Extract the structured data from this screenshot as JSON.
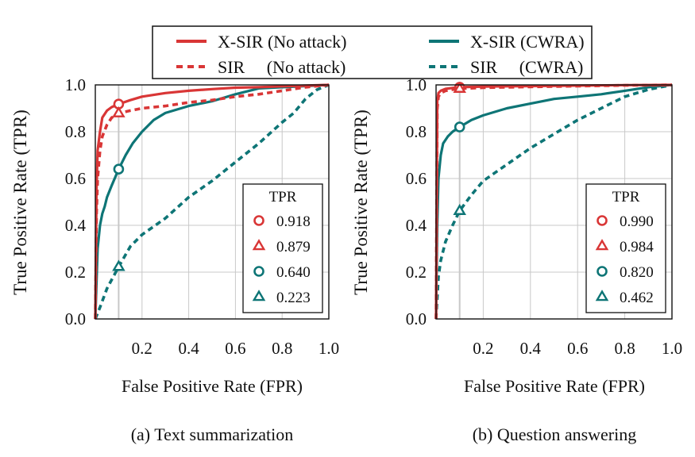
{
  "colors": {
    "red": "#d93636",
    "teal": "#0e7576",
    "grid": "#c8c8c8",
    "axis": "#111111",
    "vline": "#c8c8c8"
  },
  "legend": {
    "entries": [
      {
        "label": "X-SIR (No attack)",
        "color": "red",
        "dash": "solid"
      },
      {
        "label": "X-SIR (CWRA)",
        "color": "teal",
        "dash": "solid"
      },
      {
        "label": "SIR     (No attack)",
        "color": "red",
        "dash": "dashed"
      },
      {
        "label": "SIR     (CWRA)",
        "color": "teal",
        "dash": "dashed"
      }
    ]
  },
  "chart_data": [
    {
      "type": "line",
      "title": "(a) Text summarization",
      "xlabel": "False Positive Rate (FPR)",
      "ylabel": "True Positive Rate (TPR)",
      "xlim": [
        0,
        1
      ],
      "ylim": [
        0,
        1
      ],
      "xticks": [
        "0.2",
        "0.4",
        "0.6",
        "0.8",
        "1.0"
      ],
      "yticks": [
        "0.0",
        "0.2",
        "0.4",
        "0.6",
        "0.8",
        "1.0"
      ],
      "grid": true,
      "reference_fpr": 0.1,
      "marker_box_title": "TPR",
      "series": [
        {
          "name": "X-SIR (No attack)",
          "color": "red",
          "dash": "solid",
          "marker": "circle",
          "tpr_at_ref": "0.918",
          "x": [
            0,
            0.005,
            0.01,
            0.02,
            0.03,
            0.05,
            0.07,
            0.1,
            0.15,
            0.2,
            0.3,
            0.4,
            0.5,
            0.6,
            0.7,
            0.8,
            0.9,
            1.0
          ],
          "y": [
            0,
            0.55,
            0.72,
            0.8,
            0.86,
            0.89,
            0.905,
            0.918,
            0.935,
            0.95,
            0.965,
            0.975,
            0.982,
            0.988,
            0.99,
            0.994,
            0.997,
            1.0
          ]
        },
        {
          "name": "SIR (No attack)",
          "color": "red",
          "dash": "dashed",
          "marker": "triangle",
          "tpr_at_ref": "0.879",
          "x": [
            0,
            0.005,
            0.01,
            0.02,
            0.03,
            0.05,
            0.07,
            0.1,
            0.15,
            0.2,
            0.3,
            0.4,
            0.5,
            0.6,
            0.7,
            0.8,
            0.9,
            1.0
          ],
          "y": [
            0,
            0.45,
            0.6,
            0.72,
            0.78,
            0.83,
            0.86,
            0.879,
            0.89,
            0.9,
            0.91,
            0.925,
            0.935,
            0.95,
            0.96,
            0.975,
            0.99,
            1.0
          ]
        },
        {
          "name": "X-SIR (CWRA)",
          "color": "teal",
          "dash": "solid",
          "marker": "circle",
          "tpr_at_ref": "0.640",
          "x": [
            0,
            0.01,
            0.02,
            0.03,
            0.04,
            0.05,
            0.07,
            0.1,
            0.13,
            0.16,
            0.2,
            0.25,
            0.3,
            0.4,
            0.5,
            0.6,
            0.7,
            0.8,
            0.9,
            1.0
          ],
          "y": [
            0,
            0.3,
            0.4,
            0.45,
            0.48,
            0.52,
            0.57,
            0.64,
            0.7,
            0.75,
            0.8,
            0.85,
            0.88,
            0.91,
            0.93,
            0.96,
            0.985,
            0.99,
            0.995,
            1.0
          ]
        },
        {
          "name": "SIR (CWRA)",
          "color": "teal",
          "dash": "dashed",
          "marker": "triangle",
          "tpr_at_ref": "0.223",
          "x": [
            0,
            0.02,
            0.05,
            0.1,
            0.15,
            0.2,
            0.3,
            0.4,
            0.5,
            0.6,
            0.7,
            0.8,
            0.85,
            0.9,
            0.95,
            1.0
          ],
          "y": [
            0,
            0.05,
            0.13,
            0.223,
            0.31,
            0.36,
            0.43,
            0.52,
            0.59,
            0.67,
            0.75,
            0.84,
            0.88,
            0.94,
            0.98,
            1.0
          ]
        }
      ]
    },
    {
      "type": "line",
      "title": "(b) Question answering",
      "xlabel": "False Positive Rate (FPR)",
      "ylabel": "True Positive Rate (TPR)",
      "xlim": [
        0,
        1
      ],
      "ylim": [
        0,
        1
      ],
      "xticks": [
        "0.2",
        "0.4",
        "0.6",
        "0.8",
        "1.0"
      ],
      "yticks": [
        "0.0",
        "0.2",
        "0.4",
        "0.6",
        "0.8",
        "1.0"
      ],
      "grid": true,
      "reference_fpr": 0.1,
      "marker_box_title": "TPR",
      "series": [
        {
          "name": "X-SIR (No attack)",
          "color": "red",
          "dash": "solid",
          "marker": "circle",
          "tpr_at_ref": "0.990",
          "x": [
            0,
            0.005,
            0.01,
            0.02,
            0.04,
            0.07,
            0.1,
            0.2,
            0.4,
            0.6,
            0.8,
            1.0
          ],
          "y": [
            0,
            0.93,
            0.965,
            0.975,
            0.983,
            0.987,
            0.99,
            0.993,
            0.995,
            0.997,
            0.999,
            1.0
          ]
        },
        {
          "name": "SIR (No attack)",
          "color": "red",
          "dash": "dashed",
          "marker": "triangle",
          "tpr_at_ref": "0.984",
          "x": [
            0,
            0.005,
            0.01,
            0.02,
            0.04,
            0.07,
            0.1,
            0.2,
            0.4,
            0.6,
            0.8,
            1.0
          ],
          "y": [
            0,
            0.9,
            0.95,
            0.965,
            0.975,
            0.98,
            0.984,
            0.988,
            0.992,
            0.995,
            0.998,
            1.0
          ]
        },
        {
          "name": "X-SIR (CWRA)",
          "color": "teal",
          "dash": "solid",
          "marker": "circle",
          "tpr_at_ref": "0.820",
          "x": [
            0,
            0.005,
            0.01,
            0.02,
            0.03,
            0.05,
            0.07,
            0.1,
            0.15,
            0.2,
            0.3,
            0.4,
            0.5,
            0.6,
            0.7,
            0.8,
            0.9,
            1.0
          ],
          "y": [
            0,
            0.4,
            0.6,
            0.7,
            0.75,
            0.78,
            0.8,
            0.82,
            0.85,
            0.87,
            0.9,
            0.92,
            0.94,
            0.95,
            0.96,
            0.975,
            0.99,
            1.0
          ]
        },
        {
          "name": "SIR (CWRA)",
          "color": "teal",
          "dash": "dashed",
          "marker": "triangle",
          "tpr_at_ref": "0.462",
          "x": [
            0,
            0.01,
            0.02,
            0.04,
            0.07,
            0.1,
            0.15,
            0.2,
            0.3,
            0.4,
            0.5,
            0.6,
            0.7,
            0.8,
            0.9,
            1.0
          ],
          "y": [
            0,
            0.18,
            0.25,
            0.33,
            0.4,
            0.462,
            0.53,
            0.59,
            0.66,
            0.73,
            0.79,
            0.85,
            0.9,
            0.95,
            0.98,
            1.0
          ]
        }
      ]
    }
  ]
}
